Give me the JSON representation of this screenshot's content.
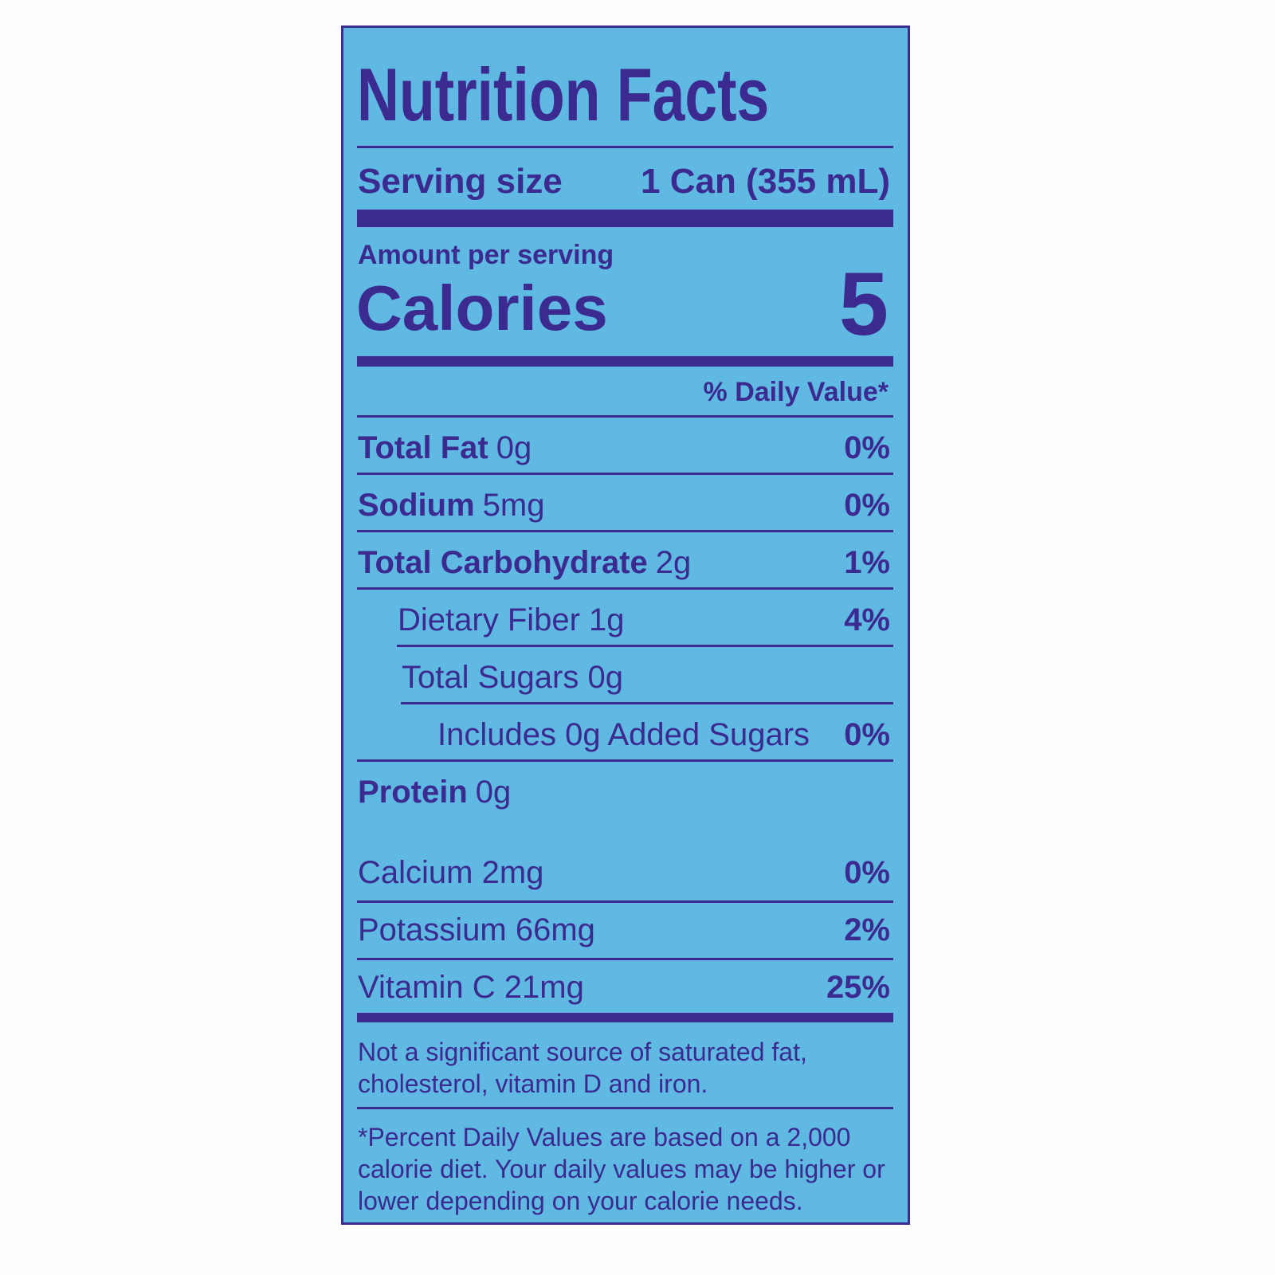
{
  "title": "Nutrition Facts",
  "serving": {
    "label": "Serving size",
    "value": "1 Can (355 mL)"
  },
  "amount_per_serving": "Amount per serving",
  "calories": {
    "label": "Calories",
    "value": "5"
  },
  "daily_value_header": "% Daily Value*",
  "nutrients": [
    {
      "name": "Total Fat",
      "amount": "0g",
      "dv": "0%"
    },
    {
      "name": "Sodium",
      "amount": "5mg",
      "dv": "0%"
    },
    {
      "name": "Total Carbohydrate",
      "amount": "2g",
      "dv": "1%"
    },
    {
      "name": "Dietary Fiber 1g",
      "dv": "4%"
    },
    {
      "name": "Total Sugars 0g"
    },
    {
      "name": "Includes 0g Added Sugars",
      "dv": "0%"
    },
    {
      "name": "Protein",
      "amount": "0g"
    }
  ],
  "minerals": [
    {
      "name": "Calcium 2mg",
      "dv": "0%"
    },
    {
      "name": "Potassium 66mg",
      "dv": "2%"
    },
    {
      "name": "Vitamin C 21mg",
      "dv": "25%"
    }
  ],
  "note": [
    "Not a significant source of saturated fat,",
    "cholesterol, vitamin D and iron."
  ],
  "footnote": [
    "*Percent Daily Values are based on a 2,000",
    "calorie diet. Your daily values may be higher or",
    "lower depending on your calorie needs."
  ]
}
